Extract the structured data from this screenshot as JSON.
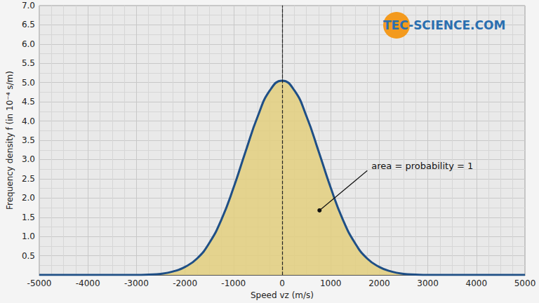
{
  "chart_data": {
    "type": "line",
    "x_label": "Speed vz (m/s)",
    "y_label": "Frequency density f (in 10⁻⁴ s/m)",
    "x": [
      -5000,
      -4750,
      -4500,
      -4250,
      -4000,
      -3750,
      -3500,
      -3250,
      -3000,
      -2750,
      -2500,
      -2250,
      -2000,
      -1750,
      -1500,
      -1250,
      -1000,
      -750,
      -500,
      -250,
      0,
      250,
      500,
      750,
      1000,
      1250,
      1500,
      1750,
      2000,
      2250,
      2500,
      2750,
      3000,
      3250,
      3500,
      3750,
      4000,
      4250,
      4500,
      4750,
      5000
    ],
    "values": [
      0,
      0,
      0,
      0,
      0,
      0,
      0,
      0,
      0,
      0.01,
      0.03,
      0.09,
      0.21,
      0.43,
      0.83,
      1.44,
      2.27,
      3.22,
      4.13,
      4.8,
      5.05,
      4.8,
      4.13,
      3.22,
      2.27,
      1.44,
      0.83,
      0.43,
      0.21,
      0.09,
      0.03,
      0.01,
      0,
      0,
      0,
      0,
      0,
      0,
      0,
      0,
      0
    ],
    "color": "#1f4f86",
    "fill_color": "#e3cf7e",
    "xlim": [
      -5000,
      5000
    ],
    "xticks": [
      -5000,
      -4000,
      -3000,
      -2000,
      -1000,
      0,
      1000,
      2000,
      3000,
      4000,
      5000
    ],
    "ylim": [
      0,
      7
    ],
    "yticks": [
      0.5,
      {
        "value": 1,
        "label": "1.0"
      },
      1.5,
      {
        "value": 2,
        "label": "2.0"
      },
      2.5,
      {
        "value": 3,
        "label": "3.0"
      },
      3.5,
      {
        "value": 4,
        "label": "4.0"
      },
      4.5,
      {
        "value": 5,
        "label": "5.0"
      },
      5.5,
      {
        "value": 6,
        "label": "6.0"
      },
      6.5,
      {
        "value": 7,
        "label": "7.0"
      }
    ],
    "grid": true,
    "reference_line": {
      "x": 0,
      "line_style": "dashed"
    },
    "annotations": [
      {
        "text": "area = probability = 1",
        "x": 1840,
        "y": 2.84,
        "point_x": 770,
        "point_y": 1.68
      }
    ],
    "watermark": "TEC-SCIENCE.COM"
  }
}
